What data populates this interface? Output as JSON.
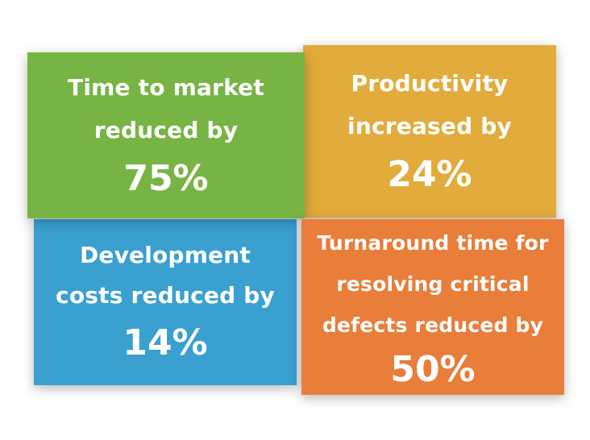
{
  "tiles": [
    {
      "label_lines": [
        "Time to market",
        "reduced by"
      ],
      "value": "75%",
      "color": "#77b443"
    },
    {
      "label_lines": [
        "Productivity",
        "increased by"
      ],
      "value": "24%",
      "color": "#e2ac3c"
    },
    {
      "label_lines": [
        "Development",
        "costs reduced by"
      ],
      "value": "14%",
      "color": "#3aa0d0"
    },
    {
      "label_lines": [
        "Turnaround time for",
        "resolving critical",
        "defects reduced by"
      ],
      "value": "50%",
      "color": "#e97d3a"
    }
  ]
}
